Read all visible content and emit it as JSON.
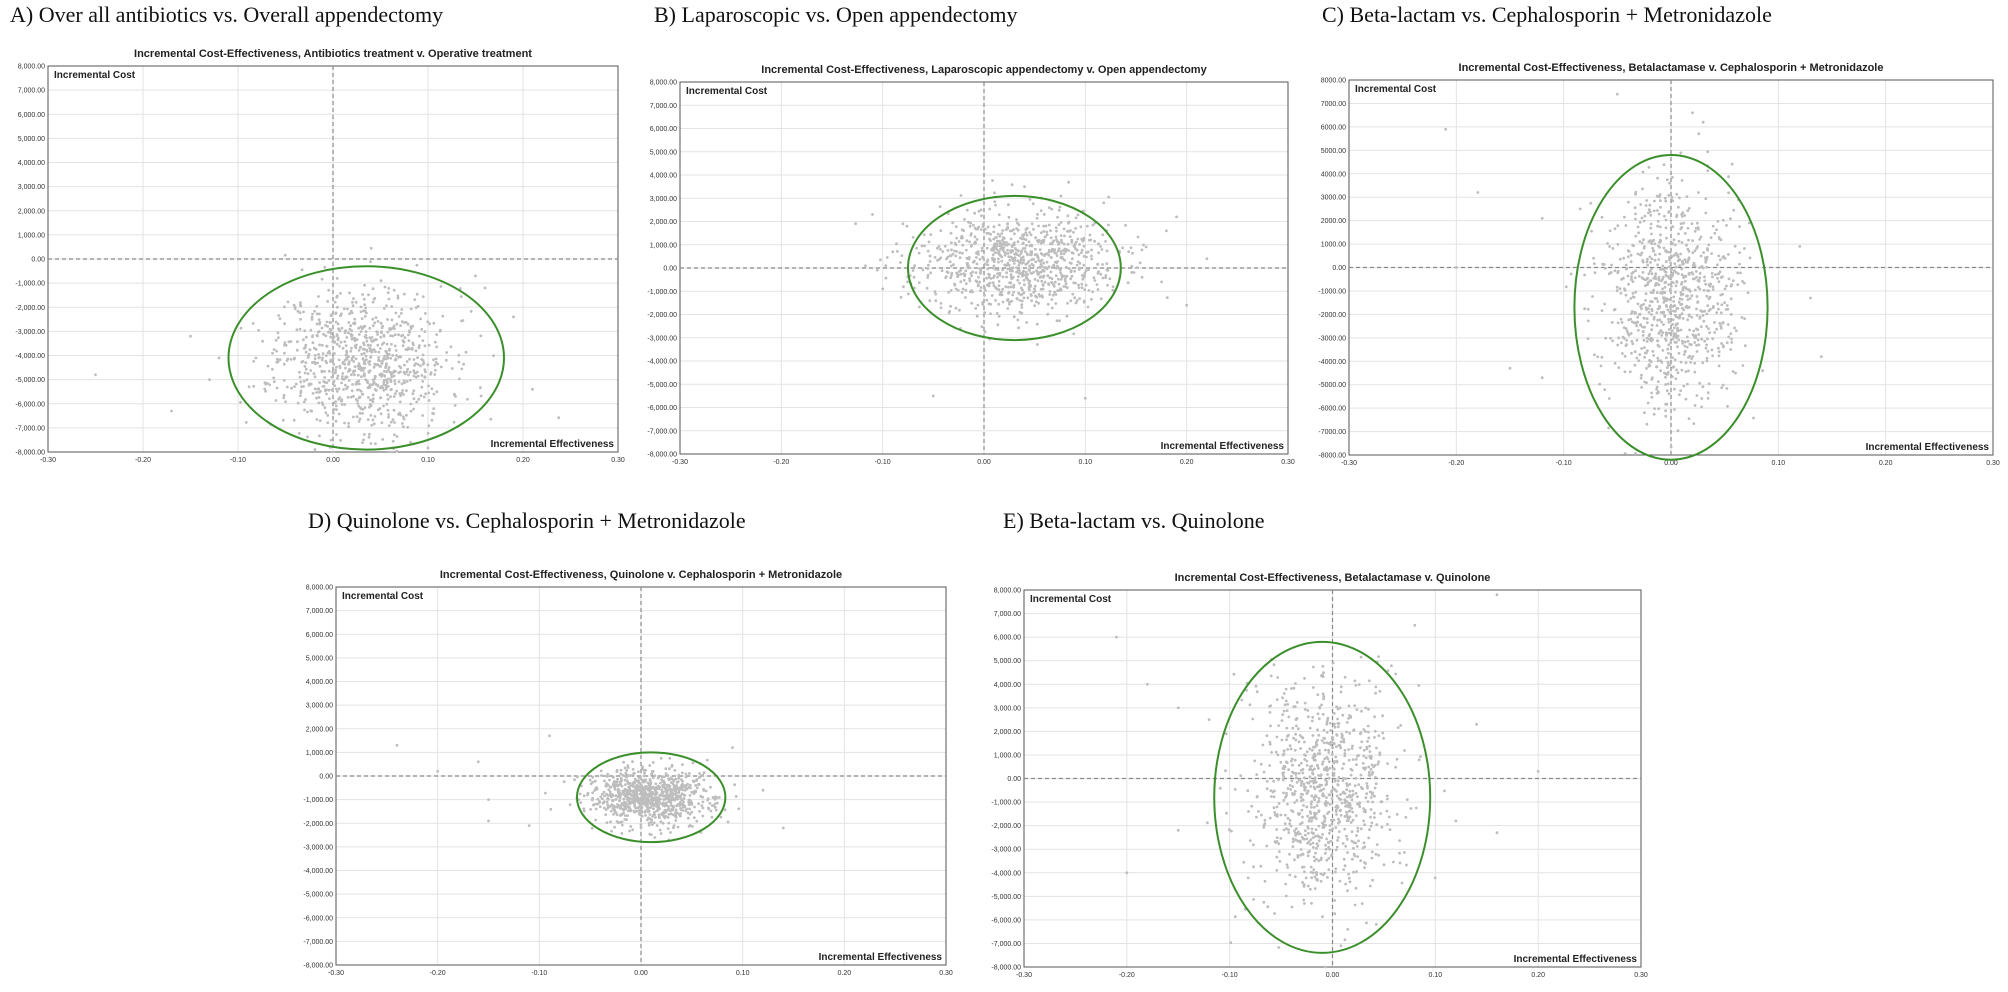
{
  "panels": [
    {
      "label": "A) Over all antibiotics vs. Overall appendectomy"
    },
    {
      "label": "B) Laparoscopic vs. Open appendectomy"
    },
    {
      "label": "C) Beta-lactam vs. Cephalosporin + Metronidazole"
    },
    {
      "label": "D) Quinolone vs. Cephalosporin + Metronidazole"
    },
    {
      "label": "E) Beta-lactam vs. Quinolone"
    }
  ],
  "colors": {
    "points": "#bdbdbd",
    "ellipse": "#3a8f2a",
    "zero_lines": "#888888",
    "grid": "#e3e3e3"
  },
  "chart_data": [
    {
      "type": "scatter",
      "title": "Incremental Cost-Effectiveness, Antibiotics treatment v. Operative treatment",
      "xlabel": "Incremental Effectiveness",
      "ylabel": "Incremental Cost",
      "xlim": [
        -0.3,
        0.3
      ],
      "ylim": [
        -8000,
        8000
      ],
      "x_ticks": [
        "-0.30",
        "-0.20",
        "-0.10",
        "0.00",
        "0.10",
        "0.20",
        "0.30"
      ],
      "y_ticks": [
        "8,000.00",
        "7,000.00",
        "6,000.00",
        "5,000.00",
        "4,000.00",
        "3,000.00",
        "2,000.00",
        "1,000.00",
        "0.00",
        "-1,000.00",
        "-2,000.00",
        "-3,000.00",
        "-4,000.00",
        "-5,000.00",
        "-6,000.00",
        "-7,000.00",
        "-8,000.00"
      ],
      "cloud": {
        "mean_x": 0.03,
        "mean_y": -4200,
        "sd_x": 0.045,
        "sd_y": 1500,
        "n": 900,
        "seed": 11
      },
      "outliers": [
        [
          -0.25,
          -4800
        ],
        [
          -0.17,
          -6300
        ],
        [
          -0.15,
          -3200
        ],
        [
          -0.12,
          -4100
        ],
        [
          0.19,
          -2400
        ],
        [
          0.21,
          -5400
        ],
        [
          0.15,
          -700
        ],
        [
          -0.13,
          -5000
        ],
        [
          0.16,
          -1200
        ]
      ],
      "ellipse": {
        "cx": 0.035,
        "cy": -4100,
        "rx": 0.145,
        "ry": 3800
      }
    },
    {
      "type": "scatter",
      "title": "Incremental Cost-Effectiveness, Laparoscopic appendectomy v. Open appendectomy",
      "xlabel": "Incremental Effectiveness",
      "ylabel": "Incremental Cost",
      "xlim": [
        -0.3,
        0.3
      ],
      "ylim": [
        -8000,
        8000
      ],
      "x_ticks": [
        "-0.30",
        "-0.20",
        "-0.10",
        "0.00",
        "0.10",
        "0.20",
        "0.30"
      ],
      "y_ticks": [
        "8,000.00",
        "7,000.00",
        "6,000.00",
        "5,000.00",
        "4,000.00",
        "3,000.00",
        "2,000.00",
        "1,000.00",
        "0.00",
        "-1,000.00",
        "-2,000.00",
        "-3,000.00",
        "-4,000.00",
        "-5,000.00",
        "-6,000.00",
        "-7,000.00",
        "-8,000.00"
      ],
      "cloud": {
        "mean_x": 0.03,
        "mean_y": 200,
        "sd_x": 0.05,
        "sd_y": 1100,
        "n": 900,
        "seed": 23
      },
      "outliers": [
        [
          -0.11,
          2300
        ],
        [
          -0.08,
          1900
        ],
        [
          -0.05,
          -5500
        ],
        [
          0.1,
          -5600
        ],
        [
          0.18,
          1600
        ],
        [
          0.2,
          -1600
        ],
        [
          0.22,
          400
        ],
        [
          0.19,
          2200
        ],
        [
          0.04,
          3500
        ],
        [
          -0.1,
          -900
        ]
      ],
      "ellipse": {
        "cx": 0.03,
        "cy": 0,
        "rx": 0.105,
        "ry": 3100
      }
    },
    {
      "type": "scatter",
      "title": "Incremental Cost-Effectiveness, Betalactamase v. Cephalosporin + Metronidazole",
      "xlabel": "Incremental Effectiveness",
      "ylabel": "Incremental Cost",
      "xlim": [
        -0.3,
        0.3
      ],
      "ylim": [
        -8000,
        8000
      ],
      "x_ticks": [
        "-0.30",
        "-0.20",
        "-0.10",
        "0.00",
        "0.10",
        "0.20",
        "0.30"
      ],
      "y_ticks": [
        "8000.00",
        "7000.00",
        "6000.00",
        "5000.00",
        "4000.00",
        "3000.00",
        "2000.00",
        "1000.00",
        "0.00",
        "-1000.00",
        "-2000.00",
        "-3000.00",
        "-4000.00",
        "-5000.00",
        "-6000.00",
        "-7000.00",
        "-8000.00"
      ],
      "cloud": {
        "mean_x": 0.0,
        "mean_y": -1200,
        "sd_x": 0.03,
        "sd_y": 2300,
        "n": 900,
        "seed": 37
      },
      "outliers": [
        [
          -0.21,
          5900
        ],
        [
          -0.18,
          3200
        ],
        [
          -0.2,
          0
        ],
        [
          -0.15,
          -4300
        ],
        [
          -0.12,
          2100
        ],
        [
          0.12,
          900
        ],
        [
          0.14,
          -3800
        ],
        [
          0.13,
          -1300
        ],
        [
          -0.05,
          7400
        ],
        [
          0.02,
          6600
        ],
        [
          0.03,
          6200
        ],
        [
          -0.12,
          -4700
        ]
      ],
      "ellipse": {
        "cx": 0.0,
        "cy": -1700,
        "rx": 0.09,
        "ry": 6500
      }
    },
    {
      "type": "scatter",
      "title": "Incremental Cost-Effectiveness, Quinolone v. Cephalosporin + Metronidazole",
      "xlabel": "Incremental Effectiveness",
      "ylabel": "Incremental Cost",
      "xlim": [
        -0.3,
        0.3
      ],
      "ylim": [
        -8000,
        8000
      ],
      "x_ticks": [
        "-0.30",
        "-0.20",
        "-0.10",
        "0.00",
        "0.10",
        "0.20",
        "0.30"
      ],
      "y_ticks": [
        "8,000.00",
        "7,000.00",
        "6,000.00",
        "5,000.00",
        "4,000.00",
        "3,000.00",
        "2,000.00",
        "1,000.00",
        "0.00",
        "-1,000.00",
        "-2,000.00",
        "-3,000.00",
        "-4,000.00",
        "-5,000.00",
        "-6,000.00",
        "-7,000.00",
        "-8,000.00"
      ],
      "cloud": {
        "mean_x": 0.01,
        "mean_y": -900,
        "sd_x": 0.03,
        "sd_y": 600,
        "n": 900,
        "seed": 53
      },
      "outliers": [
        [
          -0.24,
          1300
        ],
        [
          -0.16,
          600
        ],
        [
          -0.15,
          -1000
        ],
        [
          -0.09,
          1700
        ],
        [
          -0.11,
          -2100
        ],
        [
          0.14,
          -2200
        ],
        [
          0.12,
          -600
        ],
        [
          -0.2,
          200
        ],
        [
          -0.15,
          -1900
        ],
        [
          0.09,
          1200
        ]
      ],
      "ellipse": {
        "cx": 0.01,
        "cy": -900,
        "rx": 0.073,
        "ry": 1900
      }
    },
    {
      "type": "scatter",
      "title": "Incremental Cost-Effectiveness, Betalactamase v. Quinolone",
      "xlabel": "Incremental Effectiveness",
      "ylabel": "Incremental Cost",
      "xlim": [
        -0.3,
        0.3
      ],
      "ylim": [
        -8000,
        8000
      ],
      "x_ticks": [
        "-0.30",
        "-0.20",
        "-0.10",
        "0.00",
        "0.10",
        "0.20",
        "0.30"
      ],
      "y_ticks": [
        "8,000.00",
        "7,000.00",
        "6,000.00",
        "5,000.00",
        "4,000.00",
        "3,000.00",
        "2,000.00",
        "1,000.00",
        "0.00",
        "-1,000.00",
        "-2,000.00",
        "-3,000.00",
        "-4,000.00",
        "-5,000.00",
        "-6,000.00",
        "-7,000.00",
        "-8,000.00"
      ],
      "cloud": {
        "mean_x": -0.01,
        "mean_y": -600,
        "sd_x": 0.035,
        "sd_y": 2400,
        "n": 900,
        "seed": 71
      },
      "outliers": [
        [
          -0.21,
          6000
        ],
        [
          -0.18,
          4000
        ],
        [
          -0.2,
          -4000
        ],
        [
          -0.15,
          3000
        ],
        [
          0.16,
          7800
        ],
        [
          0.16,
          -2300
        ],
        [
          0.2,
          300
        ],
        [
          0.14,
          2300
        ],
        [
          -0.12,
          2500
        ],
        [
          0.08,
          6500
        ],
        [
          -0.15,
          -2200
        ],
        [
          0.12,
          -1800
        ]
      ],
      "ellipse": {
        "cx": -0.01,
        "cy": -800,
        "rx": 0.105,
        "ry": 6600
      }
    }
  ]
}
